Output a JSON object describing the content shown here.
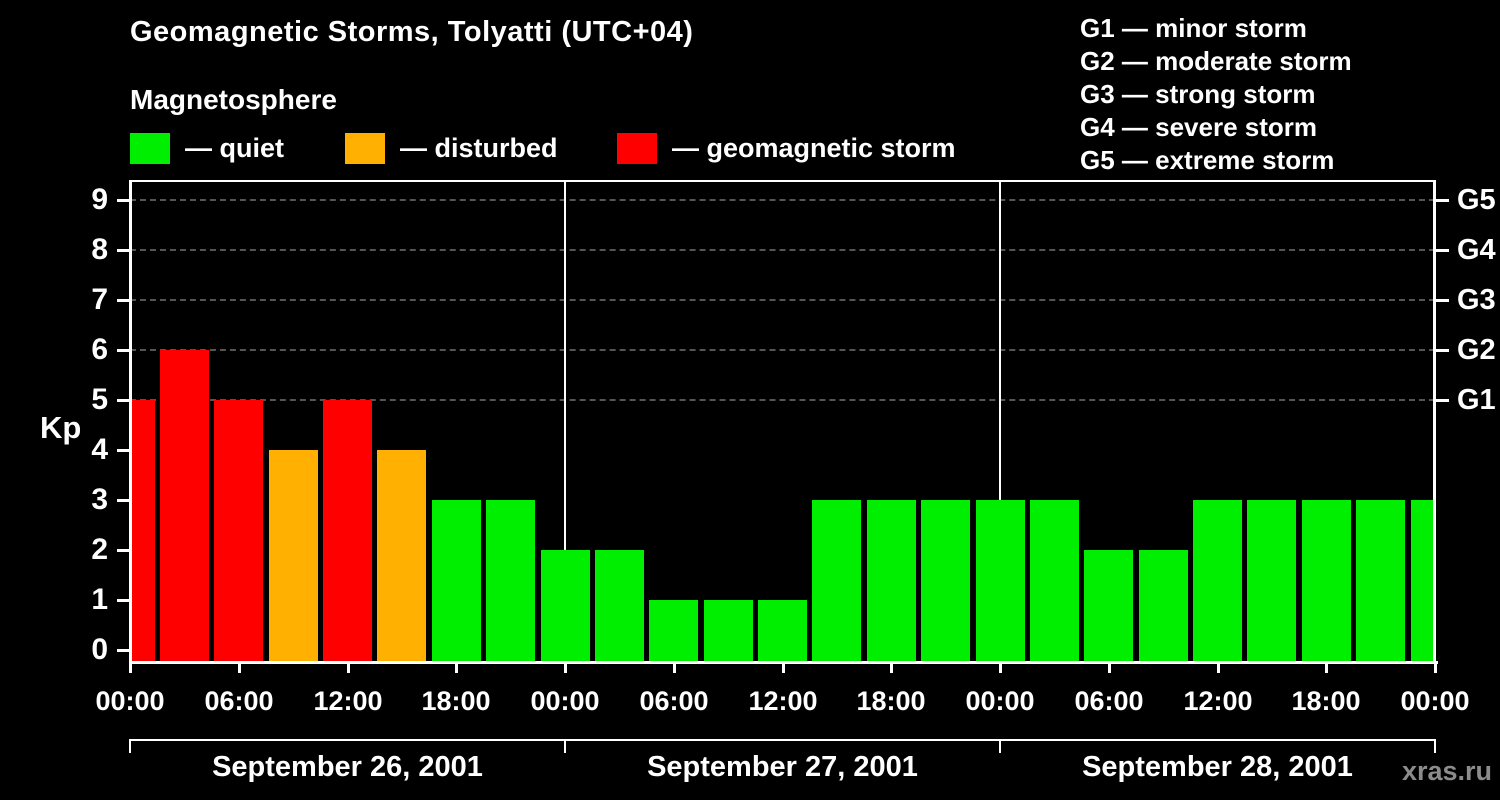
{
  "title": "Geomagnetic Storms, Tolyatti (UTC+04)",
  "subtitle": "Magnetosphere",
  "legend": {
    "items": [
      {
        "name": "quiet",
        "label": "— quiet",
        "color": "#00ee00"
      },
      {
        "name": "disturbed",
        "label": "— disturbed",
        "color": "#ffb000"
      },
      {
        "name": "storm",
        "label": "— geomagnetic storm",
        "color": "#ff0000"
      }
    ]
  },
  "storm_scale": [
    "G1 — minor storm",
    "G2 — moderate storm",
    "G3 — strong storm",
    "G4 — severe storm",
    "G5 — extreme storm"
  ],
  "watermark": "xras.ru",
  "chart_data": {
    "type": "bar",
    "title": "Geomagnetic Storms, Tolyatti (UTC+04)",
    "ylabel": "Kp",
    "xlabel": "",
    "ylim": [
      0,
      9.5
    ],
    "y_ticks": [
      0,
      1,
      2,
      3,
      4,
      5,
      6,
      7,
      8,
      9
    ],
    "gridline_values": [
      5,
      6,
      7,
      8,
      9
    ],
    "right_axis": [
      {
        "value": 5,
        "label": "G1"
      },
      {
        "value": 6,
        "label": "G2"
      },
      {
        "value": 7,
        "label": "G3"
      },
      {
        "value": 8,
        "label": "G4"
      },
      {
        "value": 9,
        "label": "G5"
      }
    ],
    "hours_total": 72,
    "bar_interval_hours": 3,
    "bars_centered_on_hour": true,
    "x_tick_step_hours": 6,
    "x_tick_labels": [
      "00:00",
      "06:00",
      "12:00",
      "18:00",
      "00:00",
      "06:00",
      "12:00",
      "18:00",
      "00:00",
      "06:00",
      "12:00",
      "18:00",
      "00:00"
    ],
    "day_boundaries_hours": [
      24,
      48
    ],
    "date_axis_tick_hours": [
      0,
      24,
      48,
      72
    ],
    "day_labels": [
      "September 26, 2001",
      "September 27, 2001",
      "September 28, 2001"
    ],
    "kp_values": [
      5,
      6,
      5,
      4,
      5,
      4,
      3,
      3,
      2,
      2,
      1,
      1,
      1,
      3,
      3,
      3,
      3,
      3,
      2,
      2,
      3,
      3,
      3,
      3,
      3
    ],
    "kp_by_day": {
      "September 26, 2001": [
        5,
        6,
        5,
        4,
        5,
        4,
        3,
        3
      ],
      "September 27, 2001": [
        2,
        2,
        1,
        1,
        1,
        3,
        3,
        3
      ],
      "September 28, 2001": [
        3,
        3,
        2,
        2,
        3,
        3,
        3,
        3
      ]
    },
    "colors": {
      "quiet": "#00ee00",
      "disturbed": "#ffb000",
      "storm": "#ff0000"
    },
    "thresholds": {
      "disturbed_min": 4,
      "storm_min": 5
    },
    "grid": "dashed horizontal lines at Kp 5–9",
    "legend_position": "top-left"
  }
}
